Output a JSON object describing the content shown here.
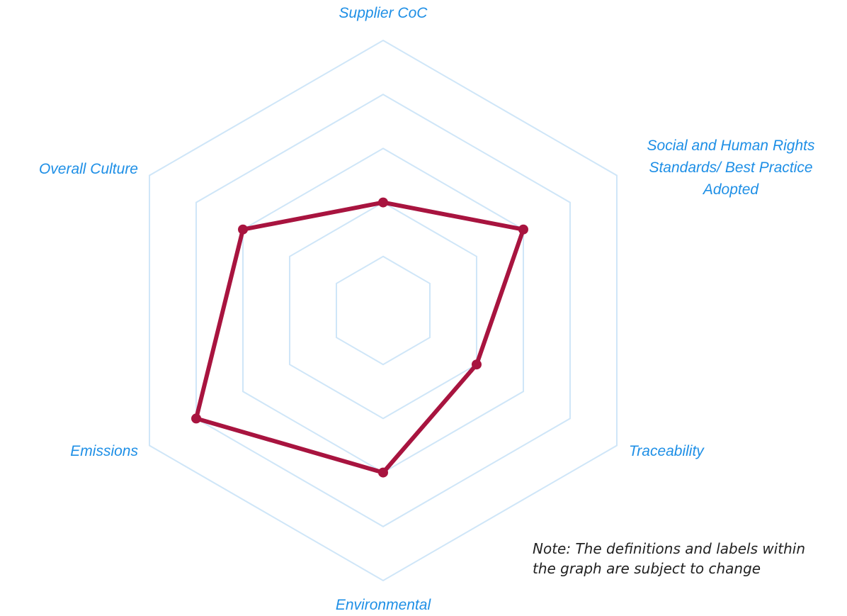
{
  "chart_data": {
    "type": "radar",
    "categories": [
      "Supplier CoC",
      "Social and Human Rights Standards/ Best Practice Adopted",
      "Traceability",
      "Environmental",
      "Emissions",
      "Overall Culture"
    ],
    "values": [
      2,
      3,
      2,
      3,
      4,
      3
    ],
    "color": "#a8143f",
    "grid_color": "#cfe6f8",
    "label_color": "#1e8fe6",
    "rlim": [
      0,
      5
    ],
    "rticks": [
      1,
      2,
      3,
      4,
      5
    ],
    "note": [
      "Note: The definitions and labels within",
      "the graph are subject to change"
    ]
  }
}
